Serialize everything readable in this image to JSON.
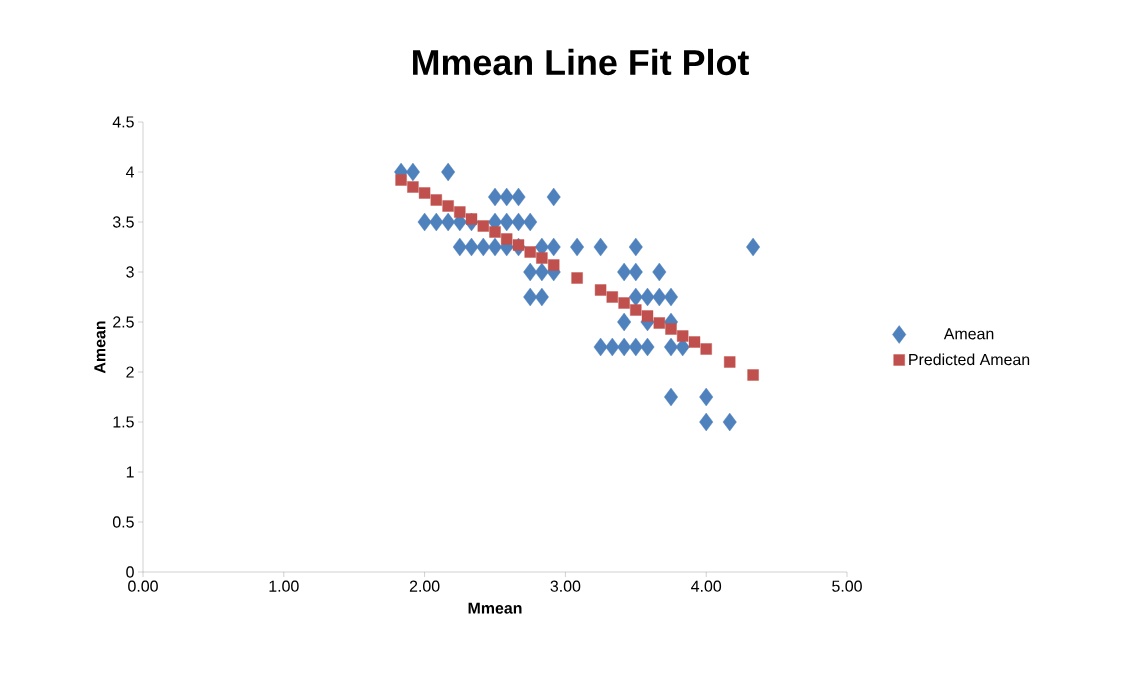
{
  "chart_data": {
    "type": "scatter",
    "title": "Mmean Line Fit Plot",
    "xlabel": "Mmean",
    "ylabel": "Amean",
    "xlim": [
      0,
      5
    ],
    "ylim": [
      0,
      4.5
    ],
    "xticks": [
      {
        "value": 0,
        "label": "0.00"
      },
      {
        "value": 1,
        "label": "1.00"
      },
      {
        "value": 2,
        "label": "2.00"
      },
      {
        "value": 3,
        "label": "3.00"
      },
      {
        "value": 4,
        "label": "4.00"
      },
      {
        "value": 5,
        "label": "5.00"
      }
    ],
    "yticks": [
      0,
      0.5,
      1,
      1.5,
      2,
      2.5,
      3,
      3.5,
      4,
      4.5
    ],
    "grid": false,
    "legend": "right",
    "series": [
      {
        "name": "Amean",
        "color": "#4f81bd",
        "marker": "diamond",
        "x": [
          1.833,
          1.917,
          2.167,
          2.5,
          2.583,
          2.667,
          2.917,
          2.0,
          2.083,
          2.167,
          2.25,
          2.333,
          2.5,
          2.583,
          2.667,
          2.75,
          2.25,
          2.333,
          2.417,
          2.5,
          2.583,
          2.667,
          2.833,
          2.917,
          3.083,
          3.25,
          3.5,
          4.333,
          2.75,
          2.833,
          2.917,
          3.417,
          3.5,
          3.667,
          2.75,
          2.833,
          3.5,
          3.583,
          3.667,
          3.75,
          3.417,
          3.583,
          3.75,
          3.25,
          3.333,
          3.417,
          3.5,
          3.583,
          3.75,
          3.833,
          3.75,
          4.0,
          4.0,
          4.167
        ],
        "values": [
          4,
          4,
          4,
          3.75,
          3.75,
          3.75,
          3.75,
          3.5,
          3.5,
          3.5,
          3.5,
          3.5,
          3.5,
          3.5,
          3.5,
          3.5,
          3.25,
          3.25,
          3.25,
          3.25,
          3.25,
          3.25,
          3.25,
          3.25,
          3.25,
          3.25,
          3.25,
          3.25,
          3,
          3,
          3,
          3,
          3,
          3,
          2.75,
          2.75,
          2.75,
          2.75,
          2.75,
          2.75,
          2.5,
          2.5,
          2.5,
          2.25,
          2.25,
          2.25,
          2.25,
          2.25,
          2.25,
          2.25,
          1.75,
          1.75,
          1.5,
          1.5
        ]
      },
      {
        "name": "Predicted Amean",
        "color": "#c0504d",
        "marker": "square",
        "x": [
          1.833,
          1.917,
          2.0,
          2.083,
          2.167,
          2.25,
          2.333,
          2.417,
          2.5,
          2.583,
          2.667,
          2.75,
          2.833,
          2.917,
          3.083,
          3.25,
          3.333,
          3.417,
          3.5,
          3.583,
          3.667,
          3.75,
          3.833,
          3.917,
          4.0,
          4.167,
          4.333
        ],
        "values": [
          3.92,
          3.85,
          3.79,
          3.72,
          3.66,
          3.6,
          3.53,
          3.46,
          3.4,
          3.33,
          3.27,
          3.2,
          3.14,
          3.07,
          2.94,
          2.82,
          2.75,
          2.69,
          2.62,
          2.56,
          2.49,
          2.43,
          2.36,
          2.3,
          2.23,
          2.1,
          1.97
        ]
      }
    ]
  }
}
